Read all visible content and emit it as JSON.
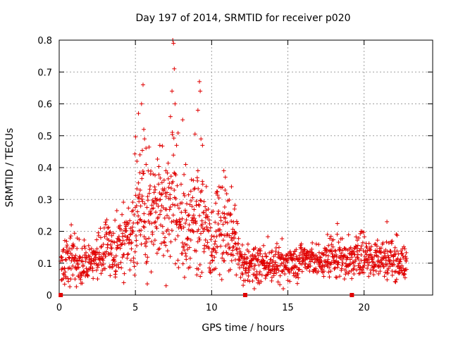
{
  "chart_data": {
    "type": "scatter",
    "title": "Day 197 of 2014, SRMTID for receiver p020",
    "xlabel": "GPS time / hours",
    "ylabel": "SRMTID / TECUs",
    "xlim": [
      0,
      24.5
    ],
    "ylim": [
      0,
      0.8
    ],
    "xticks": [
      0,
      5,
      10,
      15,
      20
    ],
    "yticks": [
      0,
      0.1,
      0.2,
      0.3,
      0.4,
      0.5,
      0.6,
      0.7,
      0.8
    ],
    "xtick_labels": [
      "0",
      "5",
      "10",
      "15",
      "20"
    ],
    "ytick_labels": [
      "0",
      "0.1",
      "0.2",
      "0.3",
      "0.4",
      "0.5",
      "0.6",
      "0.7",
      "0.8"
    ],
    "grid": true,
    "marker": "+",
    "color": "#e00000",
    "zero_markers_x": [
      0.1,
      12.2,
      19.2
    ],
    "envelope": {
      "hours": [
        0.0,
        0.5,
        1.0,
        1.5,
        2.0,
        2.5,
        3.0,
        3.5,
        4.0,
        4.5,
        5.0,
        5.5,
        6.0,
        6.5,
        7.0,
        7.5,
        8.0,
        8.5,
        9.0,
        9.5,
        10.0,
        10.5,
        11.0,
        11.5,
        12.0,
        12.5,
        13.0,
        13.5,
        14.0,
        14.5,
        15.0,
        15.5,
        16.0,
        16.5,
        17.0,
        17.5,
        18.0,
        18.5,
        19.0,
        19.5,
        20.0,
        20.5,
        21.0,
        21.5,
        22.0,
        22.5,
        22.8
      ],
      "center": [
        0.09,
        0.11,
        0.12,
        0.09,
        0.1,
        0.12,
        0.14,
        0.13,
        0.15,
        0.18,
        0.26,
        0.3,
        0.24,
        0.26,
        0.27,
        0.3,
        0.2,
        0.22,
        0.27,
        0.2,
        0.16,
        0.21,
        0.2,
        0.16,
        0.09,
        0.1,
        0.09,
        0.1,
        0.1,
        0.09,
        0.1,
        0.1,
        0.12,
        0.11,
        0.1,
        0.11,
        0.12,
        0.12,
        0.11,
        0.12,
        0.12,
        0.11,
        0.12,
        0.11,
        0.12,
        0.1,
        0.09
      ],
      "spread": [
        0.03,
        0.04,
        0.04,
        0.04,
        0.04,
        0.04,
        0.05,
        0.05,
        0.05,
        0.07,
        0.1,
        0.11,
        0.1,
        0.1,
        0.11,
        0.12,
        0.09,
        0.09,
        0.1,
        0.08,
        0.07,
        0.08,
        0.07,
        0.06,
        0.03,
        0.03,
        0.03,
        0.03,
        0.03,
        0.03,
        0.03,
        0.03,
        0.03,
        0.03,
        0.03,
        0.03,
        0.04,
        0.04,
        0.03,
        0.04,
        0.04,
        0.03,
        0.04,
        0.03,
        0.04,
        0.03,
        0.03
      ]
    },
    "peaks": [
      {
        "x": 5.1,
        "y": 0.42
      },
      {
        "x": 5.2,
        "y": 0.57
      },
      {
        "x": 5.3,
        "y": 0.44
      },
      {
        "x": 5.4,
        "y": 0.6
      },
      {
        "x": 5.5,
        "y": 0.66
      },
      {
        "x": 5.55,
        "y": 0.52
      },
      {
        "x": 5.6,
        "y": 0.49
      },
      {
        "x": 5.7,
        "y": 0.41
      },
      {
        "x": 6.0,
        "y": 0.38
      },
      {
        "x": 6.3,
        "y": 0.33
      },
      {
        "x": 6.6,
        "y": 0.47
      },
      {
        "x": 7.0,
        "y": 0.39
      },
      {
        "x": 7.3,
        "y": 0.56
      },
      {
        "x": 7.4,
        "y": 0.64
      },
      {
        "x": 7.45,
        "y": 0.8
      },
      {
        "x": 7.5,
        "y": 0.79
      },
      {
        "x": 7.55,
        "y": 0.71
      },
      {
        "x": 7.6,
        "y": 0.6
      },
      {
        "x": 7.7,
        "y": 0.47
      },
      {
        "x": 8.1,
        "y": 0.55
      },
      {
        "x": 8.3,
        "y": 0.41
      },
      {
        "x": 8.8,
        "y": 0.36
      },
      {
        "x": 9.1,
        "y": 0.58
      },
      {
        "x": 9.2,
        "y": 0.67
      },
      {
        "x": 9.25,
        "y": 0.64
      },
      {
        "x": 9.3,
        "y": 0.49
      },
      {
        "x": 9.4,
        "y": 0.47
      },
      {
        "x": 9.1,
        "y": 0.39
      },
      {
        "x": 10.3,
        "y": 0.32
      },
      {
        "x": 10.8,
        "y": 0.39
      },
      {
        "x": 10.9,
        "y": 0.37
      },
      {
        "x": 11.3,
        "y": 0.34
      },
      {
        "x": 11.5,
        "y": 0.27
      },
      {
        "x": 21.5,
        "y": 0.23
      },
      {
        "x": 19.8,
        "y": 0.2
      },
      {
        "x": 17.6,
        "y": 0.19
      },
      {
        "x": 12.8,
        "y": 0.02
      },
      {
        "x": 14.7,
        "y": 0.02
      }
    ]
  }
}
